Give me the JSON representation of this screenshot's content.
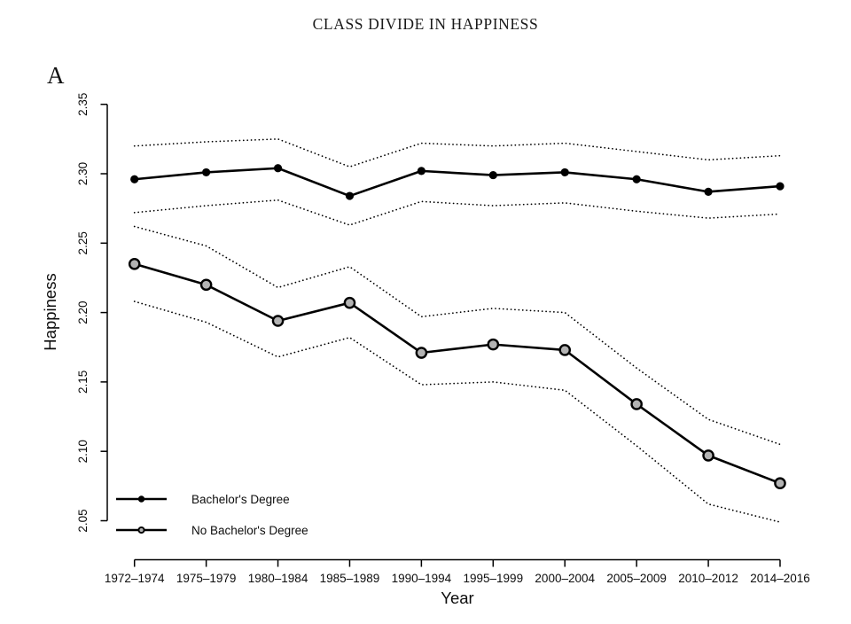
{
  "title": "CLASS DIVIDE IN HAPPINESS",
  "panel_label": "A",
  "colors": {
    "line": "#000000",
    "marker_gray_fill": "#b3b3b3",
    "background": "#ffffff",
    "text": "#0d0d0d"
  },
  "legend": {
    "position": "bottom-left",
    "items": [
      {
        "label": "Bachelor's Degree",
        "marker": "filled-black-circle"
      },
      {
        "label": "No Bachelor's Degree",
        "marker": "gray-open-circle"
      }
    ]
  },
  "chart_data": {
    "type": "line",
    "title": "CLASS DIVIDE IN HAPPINESS",
    "xlabel": "Year",
    "ylabel": "Happiness",
    "ylim": [
      2.05,
      2.35
    ],
    "grid": false,
    "ci_style": "dotted",
    "y_tick_labels": [
      "2.05",
      "2.10",
      "2.15",
      "2.20",
      "2.25",
      "2.30",
      "2.35"
    ],
    "y_ticks": [
      2.05,
      2.1,
      2.15,
      2.2,
      2.25,
      2.3,
      2.35
    ],
    "categories": [
      "1972–1974",
      "1975–1979",
      "1980–1984",
      "1985–1989",
      "1990–1994",
      "1995–1999",
      "2000–2004",
      "2005–2009",
      "2010–2012",
      "2014–2016"
    ],
    "series": [
      {
        "name": "Bachelor's Degree",
        "marker": "filled-black-circle",
        "values": [
          2.296,
          2.301,
          2.304,
          2.284,
          2.302,
          2.299,
          2.301,
          2.296,
          2.287,
          2.291
        ],
        "ci_upper": [
          2.32,
          2.323,
          2.325,
          2.305,
          2.322,
          2.32,
          2.322,
          2.316,
          2.31,
          2.313
        ],
        "ci_lower": [
          2.272,
          2.277,
          2.281,
          2.263,
          2.28,
          2.277,
          2.279,
          2.273,
          2.268,
          2.271
        ]
      },
      {
        "name": "No Bachelor's Degree",
        "marker": "gray-open-circle",
        "values": [
          2.235,
          2.22,
          2.194,
          2.207,
          2.171,
          2.177,
          2.173,
          2.134,
          2.097,
          2.077
        ],
        "ci_upper": [
          2.262,
          2.248,
          2.218,
          2.233,
          2.197,
          2.203,
          2.2,
          2.16,
          2.123,
          2.105
        ],
        "ci_lower": [
          2.208,
          2.193,
          2.168,
          2.182,
          2.148,
          2.15,
          2.144,
          2.104,
          2.062,
          2.049
        ]
      }
    ]
  }
}
